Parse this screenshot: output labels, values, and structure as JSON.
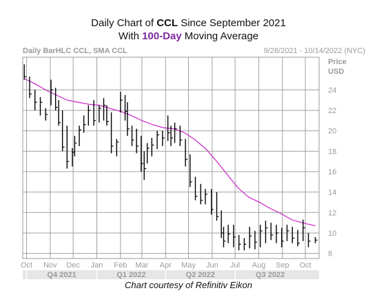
{
  "title": {
    "line1_prefix": "Daily Chart of ",
    "line1_ticker": "CCL",
    "line1_suffix": " Since September 2021",
    "line2_prefix": "With ",
    "line2_highlight": "100-Day",
    "line2_suffix": " Moving Average"
  },
  "caption": "Chart courtesy of Refinitiv Eikon",
  "chart_data": {
    "type": "line",
    "header_left": "Daily BarHLC CCL, SMA CCL",
    "header_right": "9/28/2021 - 10/14/2022 (NYC)",
    "ylabel": "Price USD",
    "ylabel_line1": "Price",
    "ylabel_line2": "USD",
    "ylim": [
      7.5,
      27.2
    ],
    "yticks": [
      8,
      10,
      12,
      14,
      16,
      18,
      20,
      22,
      24
    ],
    "grid": true,
    "month_labels": [
      "Oct",
      "Nov",
      "Dec",
      "Jan",
      "Feb",
      "Mar",
      "Apr",
      "May",
      "Jun",
      "Jul",
      "Aug",
      "Sep",
      "Oct"
    ],
    "quarter_labels": [
      "Q4 2021",
      "Q1 2022",
      "Q2 2022",
      "Q3 2022"
    ],
    "colors": {
      "price": "#000000",
      "sma": "#cc33cc",
      "grid": "#a0a0a0",
      "axis_text": "#9a9a9a",
      "band": "#e6e6e6"
    },
    "series": [
      {
        "name": "CCL",
        "style": "bar-hlc",
        "x": [
          "2021-09-28",
          "2021-10-05",
          "2021-10-12",
          "2021-10-19",
          "2021-10-26",
          "2021-11-02",
          "2021-11-08",
          "2021-11-12",
          "2021-11-17",
          "2021-11-23",
          "2021-11-30",
          "2021-12-03",
          "2021-12-09",
          "2021-12-15",
          "2021-12-21",
          "2021-12-28",
          "2022-01-04",
          "2022-01-10",
          "2022-01-14",
          "2022-01-20",
          "2022-01-27",
          "2022-02-01",
          "2022-02-07",
          "2022-02-10",
          "2022-02-16",
          "2022-02-22",
          "2022-02-28",
          "2022-03-04",
          "2022-03-08",
          "2022-03-14",
          "2022-03-21",
          "2022-03-28",
          "2022-04-04",
          "2022-04-08",
          "2022-04-13",
          "2022-04-20",
          "2022-04-27",
          "2022-05-03",
          "2022-05-10",
          "2022-05-17",
          "2022-05-23",
          "2022-05-31",
          "2022-06-07",
          "2022-06-13",
          "2022-06-16",
          "2022-06-22",
          "2022-06-29",
          "2022-07-06",
          "2022-07-13",
          "2022-07-20",
          "2022-07-27",
          "2022-08-03",
          "2022-08-10",
          "2022-08-17",
          "2022-08-24",
          "2022-08-31",
          "2022-09-07",
          "2022-09-14",
          "2022-09-21",
          "2022-09-28",
          "2022-10-05",
          "2022-10-14"
        ],
        "high": [
          26.5,
          25.3,
          24.0,
          23.3,
          22.2,
          25.0,
          24.2,
          23.0,
          22.0,
          20.5,
          18.3,
          19.5,
          20.5,
          21.5,
          22.5,
          23.0,
          22.5,
          23.2,
          22.5,
          21.8,
          19.2,
          23.8,
          23.5,
          22.8,
          20.5,
          20.2,
          19.5,
          18.0,
          18.8,
          19.3,
          20.0,
          20.0,
          21.5,
          20.5,
          20.8,
          20.5,
          19.2,
          17.7,
          15.5,
          14.8,
          14.3,
          14.3,
          14.0,
          12.2,
          10.6,
          10.8,
          10.8,
          9.8,
          9.5,
          10.6,
          10.2,
          10.8,
          11.2,
          11.0,
          10.8,
          10.5,
          10.8,
          10.6,
          10.3,
          11.3,
          10.0,
          9.6
        ],
        "low": [
          25.0,
          23.2,
          22.0,
          21.5,
          21.0,
          22.5,
          22.0,
          20.5,
          18.0,
          16.3,
          16.5,
          17.5,
          18.5,
          19.8,
          20.5,
          20.5,
          20.8,
          21.0,
          20.5,
          17.8,
          17.5,
          21.8,
          21.0,
          19.5,
          18.5,
          17.8,
          16.0,
          15.2,
          16.8,
          17.5,
          18.2,
          18.5,
          19.0,
          18.5,
          18.8,
          18.5,
          16.5,
          14.5,
          13.2,
          12.8,
          12.8,
          11.8,
          11.2,
          9.5,
          8.6,
          9.0,
          8.6,
          8.3,
          8.3,
          8.5,
          8.4,
          8.6,
          9.0,
          9.3,
          9.0,
          8.6,
          9.2,
          9.0,
          8.7,
          9.2,
          8.6,
          9.0
        ],
        "close": [
          25.3,
          23.6,
          22.8,
          22.8,
          21.6,
          24.0,
          22.3,
          20.8,
          18.4,
          17.0,
          17.9,
          18.8,
          20.1,
          20.6,
          22.0,
          21.0,
          22.2,
          22.5,
          20.9,
          18.5,
          18.9,
          23.0,
          21.9,
          20.2,
          19.1,
          18.5,
          16.8,
          16.3,
          18.3,
          18.6,
          19.6,
          19.3,
          19.8,
          19.3,
          20.2,
          19.1,
          17.2,
          15.0,
          13.6,
          13.2,
          13.8,
          12.3,
          11.6,
          10.0,
          9.2,
          9.9,
          9.6,
          8.9,
          8.9,
          9.7,
          9.1,
          10.2,
          10.5,
          9.8,
          10.0,
          9.2,
          10.2,
          9.5,
          9.0,
          10.5,
          9.2,
          9.3
        ]
      },
      {
        "name": "SMA CCL",
        "style": "line",
        "x": [
          "2021-09-28",
          "2021-10-12",
          "2021-10-26",
          "2021-11-09",
          "2021-11-23",
          "2021-12-07",
          "2021-12-21",
          "2022-01-04",
          "2022-01-18",
          "2022-02-01",
          "2022-02-15",
          "2022-03-01",
          "2022-03-15",
          "2022-03-29",
          "2022-04-12",
          "2022-04-26",
          "2022-05-10",
          "2022-05-24",
          "2022-06-07",
          "2022-06-21",
          "2022-07-05",
          "2022-07-19",
          "2022-08-02",
          "2022-08-16",
          "2022-08-30",
          "2022-09-13",
          "2022-09-27",
          "2022-10-14"
        ],
        "values": [
          25.1,
          24.6,
          24.0,
          23.5,
          23.0,
          22.8,
          22.6,
          22.5,
          22.2,
          21.9,
          21.5,
          21.0,
          20.6,
          20.3,
          20.2,
          19.8,
          19.1,
          18.2,
          17.0,
          15.7,
          14.4,
          13.5,
          13.0,
          12.4,
          11.9,
          11.3,
          11.0,
          10.7
        ]
      }
    ]
  }
}
